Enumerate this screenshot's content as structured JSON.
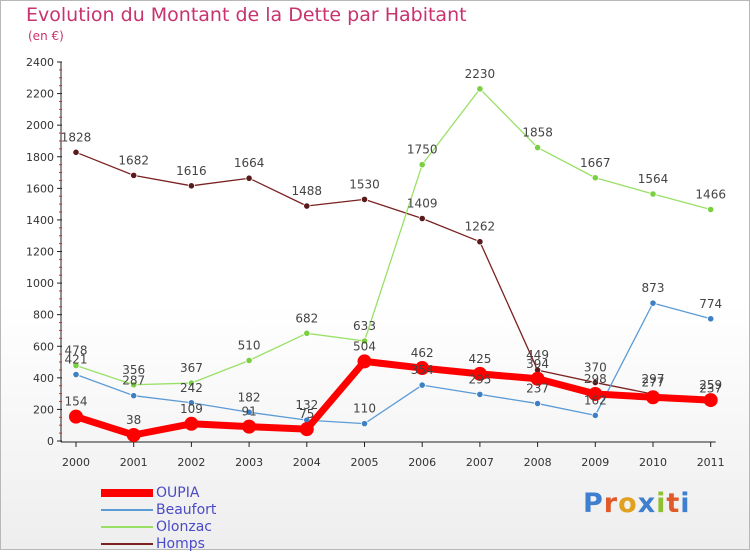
{
  "title": "Evolution du Montant de la Dette par Habitant",
  "unit": "(en €)",
  "logo": "Proxiti",
  "chart_data": {
    "type": "line",
    "x": [
      "2000",
      "2001",
      "2002",
      "2003",
      "2004",
      "2005",
      "2006",
      "2007",
      "2008",
      "2009",
      "2010",
      "2011"
    ],
    "ylim": [
      0,
      2400
    ],
    "yticks": [
      "0",
      "200",
      "400",
      "600",
      "800",
      "1000",
      "1200",
      "1400",
      "1600",
      "1800",
      "2000",
      "2200",
      "2400"
    ],
    "grid": false,
    "legend": "bottom-left",
    "series": [
      {
        "name": "Homps",
        "color": "#7b2121",
        "values": [
          1828,
          1682,
          1616,
          1664,
          1488,
          1530,
          1409,
          1262,
          449,
          370,
          297,
          237
        ]
      },
      {
        "name": "Olonzac",
        "color": "#99e066",
        "values": [
          478,
          356,
          367,
          510,
          682,
          633,
          1750,
          2230,
          1858,
          1667,
          1564,
          1466
        ]
      },
      {
        "name": "Beaufort",
        "color": "#5b9bd5",
        "values": [
          421,
          287,
          242,
          182,
          132,
          110,
          354,
          295,
          237,
          162,
          873,
          774
        ]
      },
      {
        "name": "OUPIA",
        "color": "#ff0000",
        "values": [
          154,
          38,
          109,
          91,
          75,
          504,
          462,
          425,
          394,
          298,
          277,
          259
        ]
      }
    ]
  }
}
